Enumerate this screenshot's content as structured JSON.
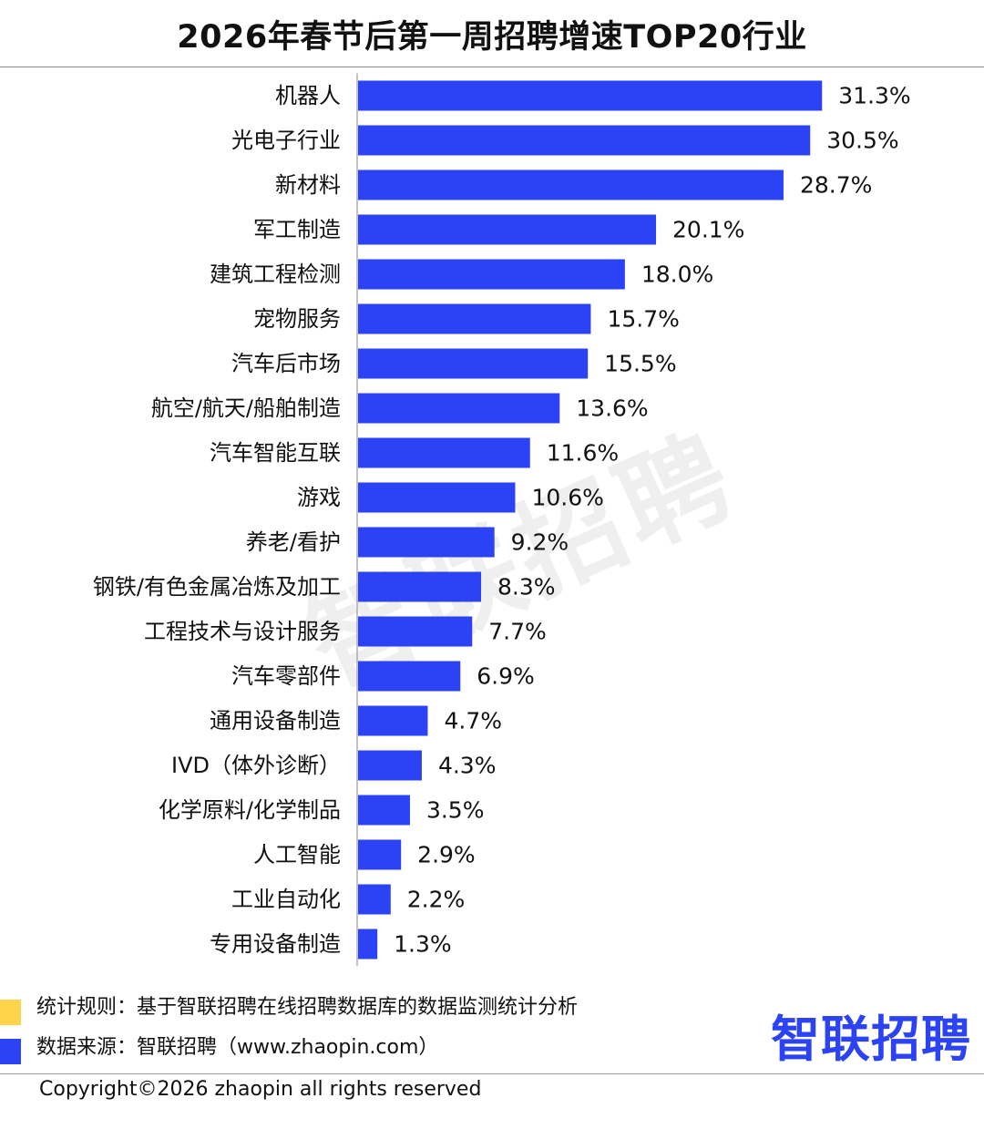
{
  "title": "2026年春节后第一周招聘增速TOP20行业",
  "watermark": "智联招聘",
  "notes": {
    "rule": "统计规则：基于智联招聘在线招聘数据库的数据监测统计分析",
    "source": "数据来源：智联招聘（www.zhaopin.com）"
  },
  "logo_text": "智联招聘",
  "copyright": "Copyright©2026 zhaopin all rights reserved",
  "colors": {
    "bar": "#2b42f5",
    "legend_yellow": "#ffd44a",
    "legend_blue": "#2b42f5",
    "logo": "#2b42f5"
  },
  "chart_data": {
    "type": "bar",
    "orientation": "horizontal",
    "categories": [
      "机器人",
      "光电子行业",
      "新材料",
      "军工制造",
      "建筑工程检测",
      "宠物服务",
      "汽车后市场",
      "航空/航天/船舶制造",
      "汽车智能互联",
      "游戏",
      "养老/看护",
      "钢铁/有色金属冶炼及加工",
      "工程技术与设计服务",
      "汽车零部件",
      "通用设备制造",
      "IVD（体外诊断）",
      "化学原料/化学制品",
      "人工智能",
      "工业自动化",
      "专用设备制造"
    ],
    "values": [
      31.3,
      30.5,
      28.7,
      20.1,
      18.0,
      15.7,
      15.5,
      13.6,
      11.6,
      10.6,
      9.2,
      8.3,
      7.7,
      6.9,
      4.7,
      4.3,
      3.5,
      2.9,
      2.2,
      1.3
    ],
    "value_labels": [
      "31.3%",
      "30.5%",
      "28.7%",
      "20.1%",
      "18.0%",
      "15.7%",
      "15.5%",
      "13.6%",
      "11.6%",
      "10.6%",
      "9.2%",
      "8.3%",
      "7.7%",
      "6.9%",
      "4.7%",
      "4.3%",
      "3.5%",
      "2.9%",
      "2.2%",
      "1.3%"
    ],
    "unit": "%",
    "grid": false,
    "legend": "none"
  }
}
